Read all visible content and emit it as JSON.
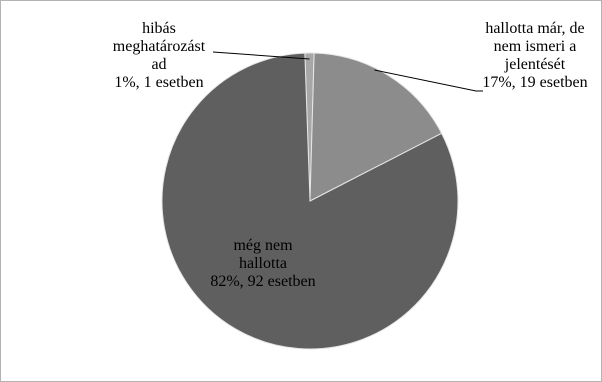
{
  "chart_data": {
    "type": "pie",
    "title": "",
    "slices": [
      {
        "label_lines": [
          "hibás",
          "meghatározást",
          "ad",
          "1%, 1 esetben"
        ],
        "percent": 1,
        "count": 1,
        "color": "#a7a7a7"
      },
      {
        "label_lines": [
          "hallotta már, de",
          "nem ismeri a",
          "jelentését",
          "17%, 19 esetben"
        ],
        "percent": 17,
        "count": 19,
        "color": "#8c8c8c"
      },
      {
        "label_lines": [
          "még nem",
          "hallotta",
          "82%, 92 esetben"
        ],
        "percent": 82,
        "count": 92,
        "color": "#5f5f5f"
      }
    ]
  }
}
